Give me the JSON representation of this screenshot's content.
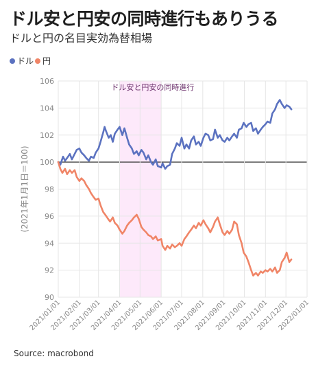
{
  "title": "ドル安と円安の同時進行もありうる",
  "subtitle": "ドルと円の名目実効為替相場",
  "legend": [
    {
      "name": "ドル",
      "color": "#5b72c0"
    },
    {
      "name": "円",
      "color": "#f08567"
    }
  ],
  "source": "Source: macrobond",
  "chart_data": {
    "type": "line",
    "ylabel": "(2021年1月1日＝100)",
    "ylim": [
      90,
      106
    ],
    "yticks": [
      90,
      92,
      94,
      96,
      98,
      100,
      102,
      104,
      106
    ],
    "xlim": [
      "2021-01-01",
      "2022-01-01"
    ],
    "xticks": [
      "2021/01/01",
      "2021/02/01",
      "2021/03/01",
      "2021/04/01",
      "2021/05/01",
      "2021/06/01",
      "2021/07/01",
      "2021/08/01",
      "2021/09/01",
      "2021/10/01",
      "2021/11/01",
      "2021/12/01",
      "2022/01/01"
    ],
    "baseline": 100,
    "grid": true,
    "highlight": {
      "start": "2021-04-01",
      "end": "2021-06-01",
      "label": "ドル安と円安の同時進行",
      "color": "#fde9fa"
    },
    "series": [
      {
        "name": "ドル",
        "color": "#5b72c0",
        "points": [
          [
            "2021-01-01",
            100.0
          ],
          [
            "2021-01-04",
            99.8
          ],
          [
            "2021-01-08",
            100.4
          ],
          [
            "2021-01-11",
            100.1
          ],
          [
            "2021-01-14",
            100.3
          ],
          [
            "2021-01-18",
            100.6
          ],
          [
            "2021-01-21",
            100.2
          ],
          [
            "2021-01-25",
            100.6
          ],
          [
            "2021-01-28",
            100.9
          ],
          [
            "2021-02-01",
            101.0
          ],
          [
            "2021-02-04",
            100.7
          ],
          [
            "2021-02-08",
            100.5
          ],
          [
            "2021-02-11",
            100.3
          ],
          [
            "2021-02-15",
            100.1
          ],
          [
            "2021-02-18",
            100.4
          ],
          [
            "2021-02-22",
            100.3
          ],
          [
            "2021-02-25",
            100.7
          ],
          [
            "2021-03-01",
            101.0
          ],
          [
            "2021-03-04",
            101.5
          ],
          [
            "2021-03-08",
            102.2
          ],
          [
            "2021-03-10",
            102.6
          ],
          [
            "2021-03-12",
            102.3
          ],
          [
            "2021-03-16",
            101.8
          ],
          [
            "2021-03-19",
            102.0
          ],
          [
            "2021-03-22",
            101.5
          ],
          [
            "2021-03-25",
            102.1
          ],
          [
            "2021-03-29",
            102.4
          ],
          [
            "2021-04-01",
            102.6
          ],
          [
            "2021-04-05",
            102.0
          ],
          [
            "2021-04-08",
            102.5
          ],
          [
            "2021-04-12",
            101.8
          ],
          [
            "2021-04-15",
            101.3
          ],
          [
            "2021-04-19",
            101.0
          ],
          [
            "2021-04-22",
            100.6
          ],
          [
            "2021-04-26",
            100.8
          ],
          [
            "2021-04-29",
            100.5
          ],
          [
            "2021-05-03",
            100.9
          ],
          [
            "2021-05-06",
            100.7
          ],
          [
            "2021-05-10",
            100.2
          ],
          [
            "2021-05-13",
            100.5
          ],
          [
            "2021-05-17",
            100.0
          ],
          [
            "2021-05-20",
            99.8
          ],
          [
            "2021-05-24",
            100.2
          ],
          [
            "2021-05-27",
            99.7
          ],
          [
            "2021-06-01",
            99.6
          ],
          [
            "2021-06-03",
            99.9
          ],
          [
            "2021-06-07",
            99.5
          ],
          [
            "2021-06-10",
            99.7
          ],
          [
            "2021-06-14",
            99.8
          ],
          [
            "2021-06-17",
            100.6
          ],
          [
            "2021-06-21",
            101.0
          ],
          [
            "2021-06-24",
            101.4
          ],
          [
            "2021-06-28",
            101.2
          ],
          [
            "2021-07-01",
            101.8
          ],
          [
            "2021-07-05",
            101.0
          ],
          [
            "2021-07-08",
            101.3
          ],
          [
            "2021-07-12",
            101.0
          ],
          [
            "2021-07-15",
            101.6
          ],
          [
            "2021-07-19",
            101.9
          ],
          [
            "2021-07-22",
            101.3
          ],
          [
            "2021-07-26",
            101.5
          ],
          [
            "2021-07-29",
            101.2
          ],
          [
            "2021-08-02",
            101.8
          ],
          [
            "2021-08-05",
            102.1
          ],
          [
            "2021-08-09",
            102.0
          ],
          [
            "2021-08-12",
            101.6
          ],
          [
            "2021-08-16",
            101.7
          ],
          [
            "2021-08-19",
            102.4
          ],
          [
            "2021-08-23",
            101.8
          ],
          [
            "2021-08-26",
            102.0
          ],
          [
            "2021-08-30",
            101.6
          ],
          [
            "2021-09-02",
            101.5
          ],
          [
            "2021-09-06",
            101.8
          ],
          [
            "2021-09-09",
            101.6
          ],
          [
            "2021-09-13",
            101.9
          ],
          [
            "2021-09-16",
            102.1
          ],
          [
            "2021-09-20",
            101.8
          ],
          [
            "2021-09-23",
            102.4
          ],
          [
            "2021-09-27",
            102.5
          ],
          [
            "2021-09-30",
            102.9
          ],
          [
            "2021-10-04",
            102.6
          ],
          [
            "2021-10-07",
            102.8
          ],
          [
            "2021-10-11",
            102.9
          ],
          [
            "2021-10-14",
            102.3
          ],
          [
            "2021-10-18",
            102.5
          ],
          [
            "2021-10-21",
            102.1
          ],
          [
            "2021-10-25",
            102.4
          ],
          [
            "2021-10-28",
            102.6
          ],
          [
            "2021-11-01",
            102.8
          ],
          [
            "2021-11-04",
            103.0
          ],
          [
            "2021-11-08",
            102.9
          ],
          [
            "2021-11-11",
            103.6
          ],
          [
            "2021-11-15",
            103.9
          ],
          [
            "2021-11-18",
            104.3
          ],
          [
            "2021-11-22",
            104.6
          ],
          [
            "2021-11-25",
            104.3
          ],
          [
            "2021-11-29",
            104.0
          ],
          [
            "2021-12-02",
            104.2
          ],
          [
            "2021-12-06",
            104.1
          ],
          [
            "2021-12-09",
            103.9
          ]
        ]
      },
      {
        "name": "円",
        "color": "#f08567",
        "points": [
          [
            "2021-01-01",
            100.0
          ],
          [
            "2021-01-04",
            99.5
          ],
          [
            "2021-01-07",
            99.2
          ],
          [
            "2021-01-11",
            99.5
          ],
          [
            "2021-01-14",
            99.1
          ],
          [
            "2021-01-18",
            99.4
          ],
          [
            "2021-01-21",
            99.2
          ],
          [
            "2021-01-25",
            99.4
          ],
          [
            "2021-01-28",
            98.9
          ],
          [
            "2021-02-01",
            98.6
          ],
          [
            "2021-02-04",
            98.8
          ],
          [
            "2021-02-08",
            98.6
          ],
          [
            "2021-02-11",
            98.3
          ],
          [
            "2021-02-15",
            98.0
          ],
          [
            "2021-02-18",
            97.7
          ],
          [
            "2021-02-22",
            97.4
          ],
          [
            "2021-02-25",
            97.2
          ],
          [
            "2021-03-01",
            97.3
          ],
          [
            "2021-03-04",
            96.8
          ],
          [
            "2021-03-08",
            96.3
          ],
          [
            "2021-03-11",
            96.1
          ],
          [
            "2021-03-15",
            95.8
          ],
          [
            "2021-03-18",
            95.6
          ],
          [
            "2021-03-22",
            95.9
          ],
          [
            "2021-03-25",
            95.5
          ],
          [
            "2021-03-29",
            95.3
          ],
          [
            "2021-04-01",
            95.0
          ],
          [
            "2021-04-05",
            94.7
          ],
          [
            "2021-04-08",
            94.9
          ],
          [
            "2021-04-12",
            95.3
          ],
          [
            "2021-04-15",
            95.5
          ],
          [
            "2021-04-19",
            95.7
          ],
          [
            "2021-04-22",
            95.9
          ],
          [
            "2021-04-26",
            96.1
          ],
          [
            "2021-04-29",
            95.8
          ],
          [
            "2021-05-03",
            95.2
          ],
          [
            "2021-05-06",
            95.0
          ],
          [
            "2021-05-10",
            94.8
          ],
          [
            "2021-05-13",
            94.6
          ],
          [
            "2021-05-17",
            94.5
          ],
          [
            "2021-05-20",
            94.3
          ],
          [
            "2021-05-24",
            94.5
          ],
          [
            "2021-05-27",
            94.2
          ],
          [
            "2021-06-01",
            94.3
          ],
          [
            "2021-06-03",
            93.8
          ],
          [
            "2021-06-07",
            93.5
          ],
          [
            "2021-06-10",
            93.8
          ],
          [
            "2021-06-14",
            93.6
          ],
          [
            "2021-06-17",
            93.9
          ],
          [
            "2021-06-21",
            93.7
          ],
          [
            "2021-06-24",
            93.8
          ],
          [
            "2021-06-28",
            94.0
          ],
          [
            "2021-07-01",
            93.8
          ],
          [
            "2021-07-05",
            94.3
          ],
          [
            "2021-07-08",
            94.5
          ],
          [
            "2021-07-12",
            94.8
          ],
          [
            "2021-07-15",
            95.0
          ],
          [
            "2021-07-19",
            95.3
          ],
          [
            "2021-07-22",
            95.1
          ],
          [
            "2021-07-26",
            95.5
          ],
          [
            "2021-07-29",
            95.3
          ],
          [
            "2021-08-02",
            95.7
          ],
          [
            "2021-08-05",
            95.4
          ],
          [
            "2021-08-09",
            95.1
          ],
          [
            "2021-08-12",
            94.8
          ],
          [
            "2021-08-16",
            95.2
          ],
          [
            "2021-08-19",
            95.6
          ],
          [
            "2021-08-23",
            95.9
          ],
          [
            "2021-08-26",
            95.4
          ],
          [
            "2021-08-30",
            94.8
          ],
          [
            "2021-09-02",
            94.6
          ],
          [
            "2021-09-06",
            94.9
          ],
          [
            "2021-09-09",
            94.7
          ],
          [
            "2021-09-13",
            95.0
          ],
          [
            "2021-09-16",
            95.6
          ],
          [
            "2021-09-20",
            95.4
          ],
          [
            "2021-09-23",
            94.6
          ],
          [
            "2021-09-27",
            94.0
          ],
          [
            "2021-09-30",
            93.3
          ],
          [
            "2021-10-04",
            93.0
          ],
          [
            "2021-10-07",
            92.6
          ],
          [
            "2021-10-11",
            92.0
          ],
          [
            "2021-10-14",
            91.6
          ],
          [
            "2021-10-18",
            91.8
          ],
          [
            "2021-10-21",
            91.6
          ],
          [
            "2021-10-25",
            91.9
          ],
          [
            "2021-10-28",
            91.8
          ],
          [
            "2021-11-01",
            92.0
          ],
          [
            "2021-11-04",
            91.9
          ],
          [
            "2021-11-08",
            92.1
          ],
          [
            "2021-11-11",
            91.9
          ],
          [
            "2021-11-15",
            92.2
          ],
          [
            "2021-11-18",
            91.8
          ],
          [
            "2021-11-22",
            92.0
          ],
          [
            "2021-11-25",
            92.6
          ],
          [
            "2021-11-29",
            92.9
          ],
          [
            "2021-12-02",
            93.3
          ],
          [
            "2021-12-06",
            92.6
          ],
          [
            "2021-12-09",
            92.8
          ]
        ]
      }
    ]
  }
}
